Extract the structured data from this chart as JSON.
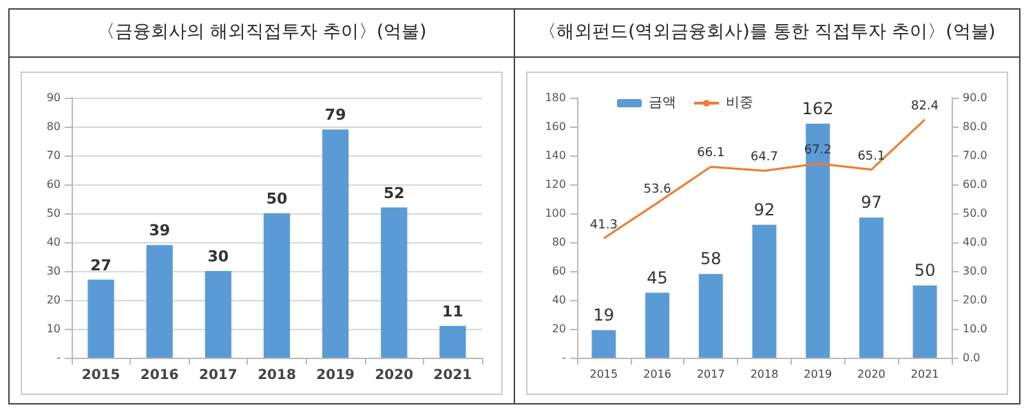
{
  "chart_data": [
    {
      "type": "bar",
      "title": "〈금융회사의 해외직접투자 추이〉(억불)",
      "categories": [
        "2015",
        "2016",
        "2017",
        "2018",
        "2019",
        "2020",
        "2021"
      ],
      "series": [
        {
          "color": "#5b9bd5",
          "values": [
            27,
            39,
            30,
            50,
            79,
            52,
            11
          ]
        }
      ],
      "ylim": [
        0,
        90
      ],
      "yticks": [
        {
          "value": 0,
          "label": "-"
        },
        10,
        20,
        30,
        40,
        50,
        60,
        70,
        80,
        90
      ],
      "grid": "y",
      "data_labels": true
    },
    {
      "type": "bar",
      "title": "〈해외펀드(역외금융회사)를 통한 직접투자 추이〉(억불)",
      "categories": [
        "2015",
        "2016",
        "2017",
        "2018",
        "2019",
        "2020",
        "2021"
      ],
      "series": [
        {
          "name": "금액",
          "color": "#5b9bd5",
          "values": [
            19,
            45,
            58,
            92,
            162,
            97,
            50
          ]
        },
        {
          "name": "비중",
          "type": "line",
          "axis": "y2",
          "color": "#ed7d31",
          "values": [
            41.3,
            53.6,
            66.1,
            64.7,
            67.2,
            65.1,
            82.4
          ]
        }
      ],
      "ylim": [
        0,
        180
      ],
      "yticks": [
        {
          "value": 0,
          "label": "-"
        },
        20,
        40,
        60,
        80,
        100,
        120,
        140,
        160,
        180
      ],
      "y2lim": [
        0,
        90
      ],
      "y2ticks": [
        {
          "value": 0,
          "label": "0.0"
        },
        {
          "value": 10,
          "label": "10.0"
        },
        {
          "value": 20,
          "label": "20.0"
        },
        {
          "value": 30,
          "label": "30.0"
        },
        {
          "value": 40,
          "label": "40.0"
        },
        {
          "value": 50,
          "label": "50.0"
        },
        {
          "value": 60,
          "label": "60.0"
        },
        {
          "value": 70,
          "label": "70.0"
        },
        {
          "value": 80,
          "label": "80.0"
        },
        {
          "value": 90,
          "label": "90.0"
        }
      ],
      "grid": false,
      "data_labels": true,
      "legend": "top left",
      "marker": "none"
    }
  ]
}
